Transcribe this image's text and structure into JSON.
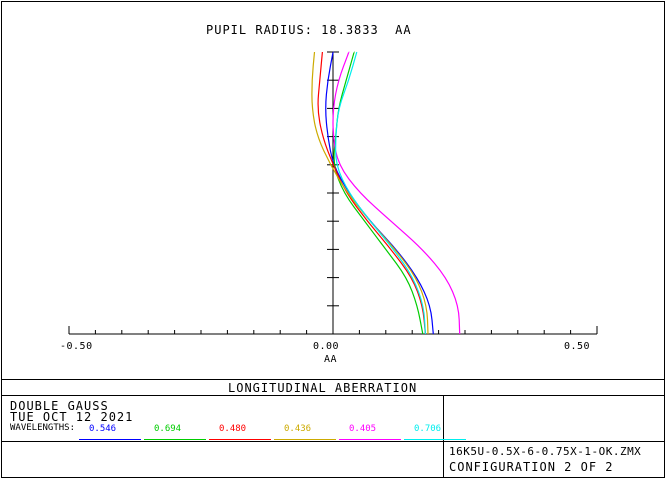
{
  "chart_data": {
    "type": "line",
    "title": "PUPIL RADIUS: 18.3833  AA",
    "xlabel": "AA",
    "xlim": [
      -0.5,
      0.5
    ],
    "ylim": [
      0,
      1
    ],
    "x_tick_labels": [
      "-0.50",
      "0.00",
      "0.50"
    ],
    "orientation": "horizontal aberration vs normalized pupil (vertical)",
    "series": [
      {
        "name": "0.546",
        "color": "#0000ff",
        "points": [
          [
            0.19,
            0
          ],
          [
            0.185,
            0.1
          ],
          [
            0.16,
            0.2
          ],
          [
            0.12,
            0.3
          ],
          [
            0.07,
            0.4
          ],
          [
            0.03,
            0.5
          ],
          [
            0.0,
            0.6
          ],
          [
            -0.01,
            0.7
          ],
          [
            -0.015,
            0.8
          ],
          [
            -0.01,
            0.9
          ],
          [
            0.0,
            1.0
          ]
        ]
      },
      {
        "name": "0.694",
        "color": "#00cc00",
        "points": [
          [
            0.17,
            0
          ],
          [
            0.16,
            0.1
          ],
          [
            0.14,
            0.2
          ],
          [
            0.1,
            0.3
          ],
          [
            0.06,
            0.4
          ],
          [
            0.02,
            0.5
          ],
          [
            0.0,
            0.6
          ],
          [
            0.005,
            0.7
          ],
          [
            0.01,
            0.8
          ],
          [
            0.025,
            0.9
          ],
          [
            0.04,
            1.0
          ]
        ]
      },
      {
        "name": "0.480",
        "color": "#ff0000",
        "points": [
          [
            0.175,
            0
          ],
          [
            0.17,
            0.1
          ],
          [
            0.15,
            0.2
          ],
          [
            0.11,
            0.3
          ],
          [
            0.065,
            0.4
          ],
          [
            0.025,
            0.5
          ],
          [
            0.0,
            0.6
          ],
          [
            -0.02,
            0.7
          ],
          [
            -0.03,
            0.8
          ],
          [
            -0.025,
            0.9
          ],
          [
            -0.02,
            1.0
          ]
        ]
      },
      {
        "name": "0.436",
        "color": "#ccaa00",
        "points": [
          [
            0.18,
            0
          ],
          [
            0.178,
            0.1
          ],
          [
            0.158,
            0.2
          ],
          [
            0.118,
            0.3
          ],
          [
            0.07,
            0.4
          ],
          [
            0.027,
            0.5
          ],
          [
            -0.005,
            0.6
          ],
          [
            -0.03,
            0.7
          ],
          [
            -0.04,
            0.8
          ],
          [
            -0.04,
            0.9
          ],
          [
            -0.035,
            1.0
          ]
        ]
      },
      {
        "name": "0.405",
        "color": "#ff00ff",
        "points": [
          [
            0.24,
            0
          ],
          [
            0.238,
            0.1
          ],
          [
            0.215,
            0.2
          ],
          [
            0.17,
            0.3
          ],
          [
            0.11,
            0.4
          ],
          [
            0.05,
            0.5
          ],
          [
            0.01,
            0.6
          ],
          [
            0.0,
            0.7
          ],
          [
            0.0,
            0.8
          ],
          [
            0.01,
            0.9
          ],
          [
            0.03,
            1.0
          ]
        ]
      },
      {
        "name": "0.706",
        "color": "#00eeee",
        "points": [
          [
            0.175,
            0
          ],
          [
            0.172,
            0.1
          ],
          [
            0.152,
            0.2
          ],
          [
            0.115,
            0.3
          ],
          [
            0.07,
            0.4
          ],
          [
            0.03,
            0.5
          ],
          [
            0.005,
            0.6
          ],
          [
            0.005,
            0.7
          ],
          [
            0.01,
            0.8
          ],
          [
            0.03,
            0.9
          ],
          [
            0.045,
            1.0
          ]
        ]
      }
    ]
  },
  "footer": {
    "plot_type": "LONGITUDINAL ABERRATION",
    "system_title": "DOUBLE GAUSS",
    "date": "TUE OCT 12 2021",
    "wavelengths_label": "WAVELENGTHS:",
    "wavelengths": [
      {
        "value": "0.546",
        "color": "#0000ff"
      },
      {
        "value": "0.694",
        "color": "#00cc00"
      },
      {
        "value": "0.480",
        "color": "#ff0000"
      },
      {
        "value": "0.436",
        "color": "#ccaa00"
      },
      {
        "value": "0.405",
        "color": "#ff00ff"
      },
      {
        "value": "0.706",
        "color": "#00eeee"
      }
    ],
    "file_name": "16K5U-0.5X-6-0.75X-1-OK.ZMX",
    "configuration": "CONFIGURATION 2 OF 2"
  }
}
